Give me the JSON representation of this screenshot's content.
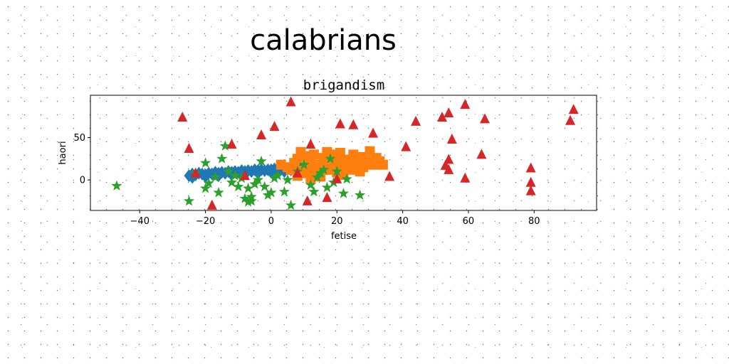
{
  "figure_title": "calabrians",
  "chart_data": {
    "type": "scatter",
    "title": "brigandism",
    "xlabel": "fetise",
    "ylabel": "haori",
    "xlim": [
      -55,
      99
    ],
    "ylim": [
      -36,
      100
    ],
    "xticks": [
      -40,
      -20,
      0,
      20,
      40,
      60,
      80
    ],
    "yticks": [
      0,
      50
    ],
    "grid": false,
    "legend": "none",
    "series": [
      {
        "marker": "diamond",
        "color": "#1f77b4",
        "points": [
          [
            -25,
            5
          ],
          [
            -24,
            7
          ],
          [
            -23,
            6
          ],
          [
            -22,
            8
          ],
          [
            -21,
            7
          ],
          [
            -20,
            6
          ],
          [
            -19,
            8
          ],
          [
            -18,
            7
          ],
          [
            -17,
            9
          ],
          [
            -16,
            8
          ],
          [
            -15,
            9
          ],
          [
            -14,
            8
          ],
          [
            -13,
            10
          ],
          [
            -12,
            9
          ],
          [
            -11,
            10
          ],
          [
            -10,
            9
          ],
          [
            -9,
            11
          ],
          [
            -8,
            10
          ],
          [
            -7,
            11
          ],
          [
            -6,
            10
          ],
          [
            -5,
            12
          ],
          [
            -4,
            11
          ],
          [
            -3,
            12
          ],
          [
            -2,
            11
          ],
          [
            -1,
            12
          ],
          [
            0,
            12
          ],
          [
            1,
            13
          ],
          [
            2,
            12
          ],
          [
            3,
            13
          ],
          [
            4,
            12
          ],
          [
            5,
            13
          ],
          [
            6,
            12
          ],
          [
            7,
            13
          ],
          [
            8,
            12
          ],
          [
            9,
            13
          ],
          [
            10,
            12
          ],
          [
            11,
            13
          ],
          [
            12,
            14
          ],
          [
            13,
            13
          ],
          [
            14,
            14
          ],
          [
            15,
            13
          ],
          [
            16,
            14
          ],
          [
            17,
            13
          ],
          [
            18,
            14
          ],
          [
            19,
            13
          ],
          [
            20,
            14
          ],
          [
            21,
            14
          ],
          [
            22,
            15
          ],
          [
            23,
            14
          ],
          [
            -24,
            3
          ],
          [
            -20,
            4
          ],
          [
            -16,
            5
          ],
          [
            -12,
            6
          ],
          [
            -8,
            7
          ],
          [
            -4,
            8
          ],
          [
            0,
            9
          ],
          [
            4,
            10
          ],
          [
            8,
            10
          ],
          [
            12,
            11
          ],
          [
            16,
            11
          ],
          [
            20,
            12
          ]
        ]
      },
      {
        "marker": "square",
        "color": "#ff7f0e",
        "points": [
          [
            3,
            18
          ],
          [
            5,
            15
          ],
          [
            6,
            12
          ],
          [
            7,
            20
          ],
          [
            8,
            25
          ],
          [
            9,
            33
          ],
          [
            10,
            28
          ],
          [
            11,
            16
          ],
          [
            12,
            22
          ],
          [
            13,
            30
          ],
          [
            14,
            10
          ],
          [
            15,
            18
          ],
          [
            16,
            26
          ],
          [
            17,
            33
          ],
          [
            18,
            14
          ],
          [
            19,
            21
          ],
          [
            20,
            28
          ],
          [
            21,
            32
          ],
          [
            22,
            17
          ],
          [
            23,
            24
          ],
          [
            24,
            12
          ],
          [
            25,
            30
          ],
          [
            26,
            20
          ],
          [
            27,
            27
          ],
          [
            28,
            15
          ],
          [
            29,
            22
          ],
          [
            30,
            34
          ],
          [
            31,
            18
          ],
          [
            32,
            26
          ],
          [
            33,
            22
          ],
          [
            34,
            18
          ],
          [
            8,
            5
          ],
          [
            11,
            8
          ],
          [
            14,
            6
          ],
          [
            17,
            12
          ],
          [
            20,
            9
          ],
          [
            12,
            2
          ],
          [
            15,
            4
          ],
          [
            9,
            11
          ],
          [
            24,
            19
          ],
          [
            27,
            10
          ],
          [
            22,
            6
          ],
          [
            18,
            30
          ],
          [
            13,
            14
          ]
        ]
      },
      {
        "marker": "star",
        "color": "#2ca02c",
        "points": [
          [
            -47,
            -7
          ],
          [
            -25,
            -25
          ],
          [
            -23,
            8
          ],
          [
            -20,
            -10
          ],
          [
            -20,
            20
          ],
          [
            -19,
            -4
          ],
          [
            -17,
            3
          ],
          [
            -16,
            -15
          ],
          [
            -15,
            25
          ],
          [
            -14,
            40
          ],
          [
            -13,
            10
          ],
          [
            -12,
            -3
          ],
          [
            -11,
            5
          ],
          [
            -10,
            -8
          ],
          [
            -9,
            2
          ],
          [
            -8,
            -22
          ],
          [
            -7,
            -26
          ],
          [
            -7,
            -10
          ],
          [
            -6,
            -20
          ],
          [
            -5,
            -5
          ],
          [
            -4,
            0
          ],
          [
            -3,
            22
          ],
          [
            -2,
            -8
          ],
          [
            -1,
            -18
          ],
          [
            0,
            -15
          ],
          [
            1,
            2
          ],
          [
            2,
            5
          ],
          [
            4,
            -14
          ],
          [
            6,
            -30
          ],
          [
            8,
            10
          ],
          [
            10,
            18
          ],
          [
            12,
            -6
          ],
          [
            13,
            -14
          ],
          [
            14,
            3
          ],
          [
            15,
            8
          ],
          [
            16,
            12
          ],
          [
            17,
            -9
          ],
          [
            18,
            25
          ],
          [
            19,
            -3
          ],
          [
            20,
            10
          ],
          [
            22,
            -16
          ],
          [
            23,
            1
          ],
          [
            27,
            -18
          ],
          [
            -6,
            -25
          ],
          [
            5,
            0
          ]
        ]
      },
      {
        "marker": "triangle",
        "color": "#d62728",
        "points": [
          [
            -27,
            74
          ],
          [
            -25,
            37
          ],
          [
            -23,
            8
          ],
          [
            -18,
            -30
          ],
          [
            -12,
            42
          ],
          [
            -8,
            5
          ],
          [
            -3,
            53
          ],
          [
            1,
            63
          ],
          [
            6,
            92
          ],
          [
            8,
            8
          ],
          [
            11,
            -25
          ],
          [
            12,
            42
          ],
          [
            17,
            -21
          ],
          [
            20,
            1
          ],
          [
            21,
            66
          ],
          [
            25,
            65
          ],
          [
            31,
            55
          ],
          [
            36,
            4
          ],
          [
            41,
            39
          ],
          [
            44,
            69
          ],
          [
            52,
            74
          ],
          [
            53,
            17
          ],
          [
            54,
            24
          ],
          [
            54,
            12
          ],
          [
            54,
            79
          ],
          [
            55,
            48
          ],
          [
            59,
            2
          ],
          [
            59,
            89
          ],
          [
            64,
            30
          ],
          [
            65,
            72
          ],
          [
            79,
            14
          ],
          [
            79,
            -3
          ],
          [
            79,
            -13
          ],
          [
            91,
            70
          ],
          [
            92,
            83
          ]
        ]
      }
    ]
  }
}
